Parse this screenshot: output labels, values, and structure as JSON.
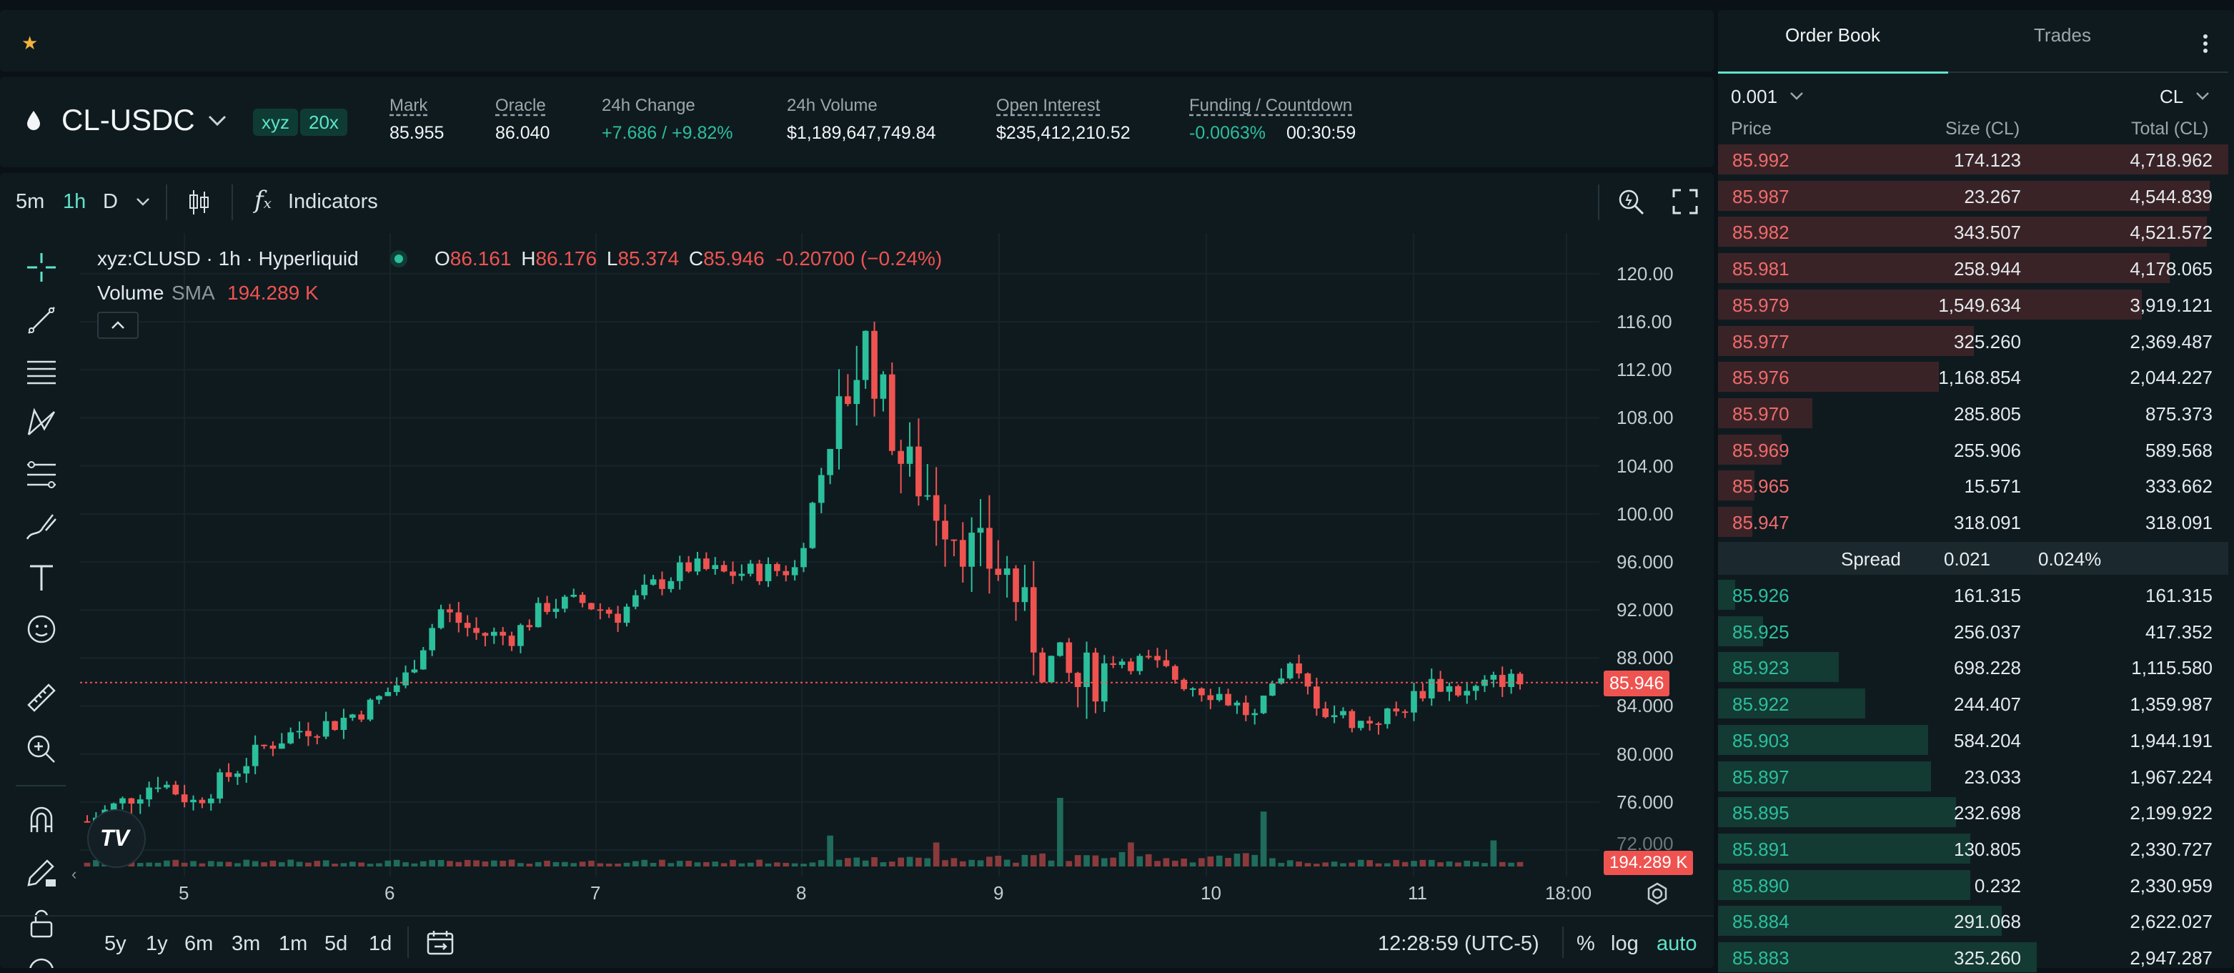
{
  "colors": {
    "up": "#2bbf9c",
    "down": "#ef5350",
    "accent": "#5fe3c8",
    "bg": "#0f1a1f"
  },
  "topbar": {
    "favorite_icon": "star-icon"
  },
  "market": {
    "pair": "CL-USDC",
    "tags": [
      "xyz",
      "20x"
    ],
    "stats": [
      {
        "label": "Mark",
        "value": "85.955"
      },
      {
        "label": "Oracle",
        "value": "86.040"
      },
      {
        "label": "24h Change",
        "value": "+7.686 / +9.82%"
      },
      {
        "label": "24h Volume",
        "value": "$1,189,647,749.84"
      },
      {
        "label": "Open Interest",
        "value": "$235,412,210.52"
      },
      {
        "label": "Funding / Countdown",
        "value": "-0.0063%",
        "countdown": "00:30:59"
      }
    ]
  },
  "chart_toolbar": {
    "intervals": [
      "5m",
      "1h",
      "D"
    ],
    "active_interval": "1h",
    "indicators_label": "Indicators"
  },
  "legend": {
    "symbol": "xyz:CLUSD · 1h · Hyperliquid",
    "o_label": "O",
    "o": "86.161",
    "h_label": "H",
    "h": "86.176",
    "l_label": "L",
    "l": "85.374",
    "c_label": "C",
    "c": "85.946",
    "change": "-0.20700 (−0.24%)",
    "volume_label": "Volume",
    "sma_label": "SMA",
    "volume_value": "194.289 K"
  },
  "chart_data": {
    "type": "candlestick",
    "price_axis": [
      "120.00",
      "116.00",
      "112.00",
      "108.00",
      "104.00",
      "100.00",
      "96.000",
      "92.000",
      "88.000",
      "84.000",
      "80.000",
      "76.000",
      "72.000"
    ],
    "time_axis": [
      "5",
      "6",
      "7",
      "8",
      "9",
      "10",
      "11",
      "18:00"
    ],
    "ylim": [
      72,
      120
    ],
    "last_price": "85.946",
    "last_volume": "194.289 K",
    "close_path": [
      [
        0,
        74.4
      ],
      [
        4,
        76
      ],
      [
        8,
        77.8
      ],
      [
        12,
        76
      ],
      [
        16,
        78.2
      ],
      [
        20,
        80.6
      ],
      [
        24,
        82
      ],
      [
        28,
        82.6
      ],
      [
        32,
        84
      ],
      [
        36,
        86.4
      ],
      [
        40,
        92
      ],
      [
        44,
        90
      ],
      [
        48,
        89.8
      ],
      [
        52,
        92.4
      ],
      [
        56,
        92.6
      ],
      [
        60,
        91.6
      ],
      [
        64,
        94
      ],
      [
        68,
        95.6
      ],
      [
        72,
        95
      ],
      [
        76,
        95.2
      ],
      [
        80,
        95.4
      ],
      [
        84,
        106
      ],
      [
        88,
        114.2
      ],
      [
        92,
        104.6
      ],
      [
        96,
        100.8
      ],
      [
        100,
        97
      ],
      [
        104,
        95
      ],
      [
        108,
        88
      ],
      [
        112,
        85.6
      ],
      [
        116,
        88
      ],
      [
        120,
        87.6
      ],
      [
        124,
        86
      ],
      [
        128,
        85
      ],
      [
        132,
        83
      ],
      [
        136,
        87
      ],
      [
        140,
        83.6
      ],
      [
        144,
        82.6
      ],
      [
        148,
        83.4
      ],
      [
        152,
        86
      ],
      [
        156,
        85
      ],
      [
        160,
        86.3
      ],
      [
        162,
        85.9
      ]
    ],
    "volume_spikes": [
      {
        "t": 84,
        "v": 0.45
      },
      {
        "t": 96,
        "v": 0.35
      },
      {
        "t": 110,
        "v": 1.0
      },
      {
        "t": 118,
        "v": 0.35
      },
      {
        "t": 133,
        "v": 0.8
      },
      {
        "t": 159,
        "v": 0.38
      }
    ]
  },
  "chart_footer": {
    "ranges": [
      "5y",
      "1y",
      "6m",
      "3m",
      "1m",
      "5d",
      "1d"
    ],
    "clock": "12:28:59 (UTC-5)",
    "percent_label": "%",
    "log_label": "log",
    "auto_label": "auto"
  },
  "order_book": {
    "tabs": [
      "Order Book",
      "Trades"
    ],
    "active_tab": "Order Book",
    "tick_size": "0.001",
    "unit": "CL",
    "headers": {
      "price": "Price",
      "size": "Size (CL)",
      "total": "Total (CL)"
    },
    "asks": [
      {
        "price": "85.992",
        "size": "174.123",
        "total": "4,718.962",
        "depth": 1.0
      },
      {
        "price": "85.987",
        "size": "23.267",
        "total": "4,544.839",
        "depth": 0.963
      },
      {
        "price": "85.982",
        "size": "343.507",
        "total": "4,521.572",
        "depth": 0.958
      },
      {
        "price": "85.981",
        "size": "258.944",
        "total": "4,178.065",
        "depth": 0.885
      },
      {
        "price": "85.979",
        "size": "1,549.634",
        "total": "3,919.121",
        "depth": 0.83
      },
      {
        "price": "85.977",
        "size": "325.260",
        "total": "2,369.487",
        "depth": 0.502
      },
      {
        "price": "85.976",
        "size": "1,168.854",
        "total": "2,044.227",
        "depth": 0.433
      },
      {
        "price": "85.970",
        "size": "285.805",
        "total": "875.373",
        "depth": 0.185
      },
      {
        "price": "85.969",
        "size": "255.906",
        "total": "589.568",
        "depth": 0.125
      },
      {
        "price": "85.965",
        "size": "15.571",
        "total": "333.662",
        "depth": 0.071
      },
      {
        "price": "85.947",
        "size": "318.091",
        "total": "318.091",
        "depth": 0.067
      }
    ],
    "spread": {
      "label": "Spread",
      "value": "0.021",
      "percent": "0.024%"
    },
    "bids": [
      {
        "price": "85.926",
        "size": "161.315",
        "total": "161.315",
        "depth": 0.034
      },
      {
        "price": "85.925",
        "size": "256.037",
        "total": "417.352",
        "depth": 0.088
      },
      {
        "price": "85.923",
        "size": "698.228",
        "total": "1,115.580",
        "depth": 0.236
      },
      {
        "price": "85.922",
        "size": "244.407",
        "total": "1,359.987",
        "depth": 0.288
      },
      {
        "price": "85.903",
        "size": "584.204",
        "total": "1,944.191",
        "depth": 0.412
      },
      {
        "price": "85.897",
        "size": "23.033",
        "total": "1,967.224",
        "depth": 0.417
      },
      {
        "price": "85.895",
        "size": "232.698",
        "total": "2,199.922",
        "depth": 0.466
      },
      {
        "price": "85.891",
        "size": "130.805",
        "total": "2,330.727",
        "depth": 0.494
      },
      {
        "price": "85.890",
        "size": "0.232",
        "total": "2,330.959",
        "depth": 0.494
      },
      {
        "price": "85.884",
        "size": "291.068",
        "total": "2,622.027",
        "depth": 0.556
      },
      {
        "price": "85.883",
        "size": "325.260",
        "total": "2,947.287",
        "depth": 0.625
      }
    ]
  }
}
